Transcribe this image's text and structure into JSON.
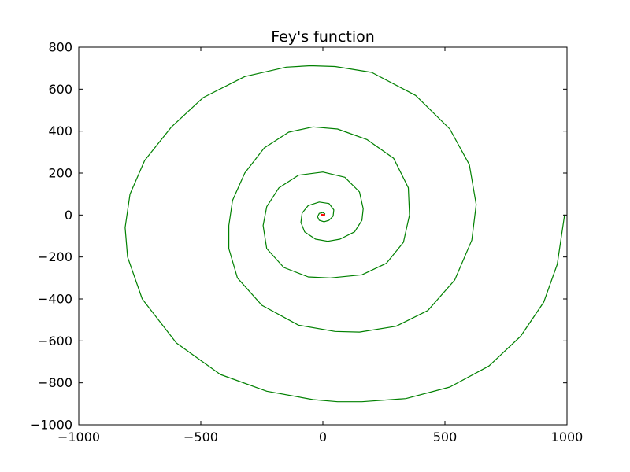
{
  "chart_data": {
    "type": "line",
    "title": "Fey's function",
    "xlabel": "",
    "ylabel": "",
    "xlim": [
      -1000,
      1000
    ],
    "ylim": [
      -1000,
      800
    ],
    "xticks": [
      -1000,
      -500,
      0,
      500,
      1000
    ],
    "xtick_labels": [
      "−1000",
      "−500",
      "0",
      "500",
      "1000"
    ],
    "yticks": [
      800,
      600,
      400,
      200,
      0,
      -200,
      -400,
      -600,
      -800,
      -1000
    ],
    "ytick_labels": [
      "800",
      "600",
      "400",
      "200",
      "0",
      "−200",
      "−400",
      "−600",
      "−800",
      "−1000"
    ],
    "grid": false,
    "legend": "none",
    "series": [
      {
        "color": "#008000",
        "points": [
          [
            990,
            0
          ],
          [
            960,
            -235
          ],
          [
            905,
            -415
          ],
          [
            810,
            -578
          ],
          [
            680,
            -720
          ],
          [
            520,
            -820
          ],
          [
            340,
            -875
          ],
          [
            160,
            -890
          ],
          [
            60,
            -890
          ],
          [
            -40,
            -880
          ],
          [
            -230,
            -840
          ],
          [
            -420,
            -760
          ],
          [
            -600,
            -610
          ],
          [
            -740,
            -400
          ],
          [
            -800,
            -200
          ],
          [
            -810,
            -60
          ],
          [
            -790,
            100
          ],
          [
            -730,
            260
          ],
          [
            -620,
            420
          ],
          [
            -490,
            560
          ],
          [
            -320,
            660
          ],
          [
            -150,
            705
          ],
          [
            -50,
            712
          ],
          [
            50,
            708
          ],
          [
            200,
            680
          ],
          [
            380,
            570
          ],
          [
            520,
            410
          ],
          [
            600,
            240
          ],
          [
            628,
            50
          ],
          [
            610,
            -120
          ],
          [
            540,
            -310
          ],
          [
            430,
            -455
          ],
          [
            300,
            -530
          ],
          [
            150,
            -558
          ],
          [
            50,
            -555
          ],
          [
            -100,
            -525
          ],
          [
            -250,
            -430
          ],
          [
            -350,
            -300
          ],
          [
            -385,
            -160
          ],
          [
            -385,
            -50
          ],
          [
            -370,
            70
          ],
          [
            -320,
            200
          ],
          [
            -240,
            320
          ],
          [
            -140,
            395
          ],
          [
            -40,
            420
          ],
          [
            60,
            410
          ],
          [
            180,
            360
          ],
          [
            290,
            270
          ],
          [
            350,
            130
          ],
          [
            355,
            0
          ],
          [
            330,
            -130
          ],
          [
            260,
            -230
          ],
          [
            160,
            -285
          ],
          [
            30,
            -300
          ],
          [
            -60,
            -295
          ],
          [
            -160,
            -250
          ],
          [
            -230,
            -160
          ],
          [
            -245,
            -50
          ],
          [
            -230,
            40
          ],
          [
            -180,
            130
          ],
          [
            -100,
            190
          ],
          [
            0,
            205
          ],
          [
            90,
            180
          ],
          [
            150,
            110
          ],
          [
            165,
            30
          ],
          [
            160,
            -25
          ],
          [
            130,
            -80
          ],
          [
            70,
            -115
          ],
          [
            20,
            -125
          ],
          [
            -30,
            -115
          ],
          [
            -75,
            -80
          ],
          [
            -90,
            -35
          ],
          [
            -85,
            10
          ],
          [
            -60,
            45
          ],
          [
            -15,
            62
          ],
          [
            25,
            55
          ],
          [
            45,
            25
          ],
          [
            42,
            -5
          ],
          [
            25,
            -25
          ],
          [
            5,
            -32
          ],
          [
            -15,
            -25
          ],
          [
            -22,
            -8
          ],
          [
            -15,
            8
          ],
          [
            0,
            12
          ],
          [
            8,
            6
          ],
          [
            6,
            -2
          ],
          [
            0,
            -3
          ]
        ]
      },
      {
        "color": "#ff0000",
        "points": [
          [
            -6,
            2
          ],
          [
            -2,
            1
          ],
          [
            2,
            0
          ],
          [
            6,
            1
          ]
        ]
      }
    ]
  }
}
